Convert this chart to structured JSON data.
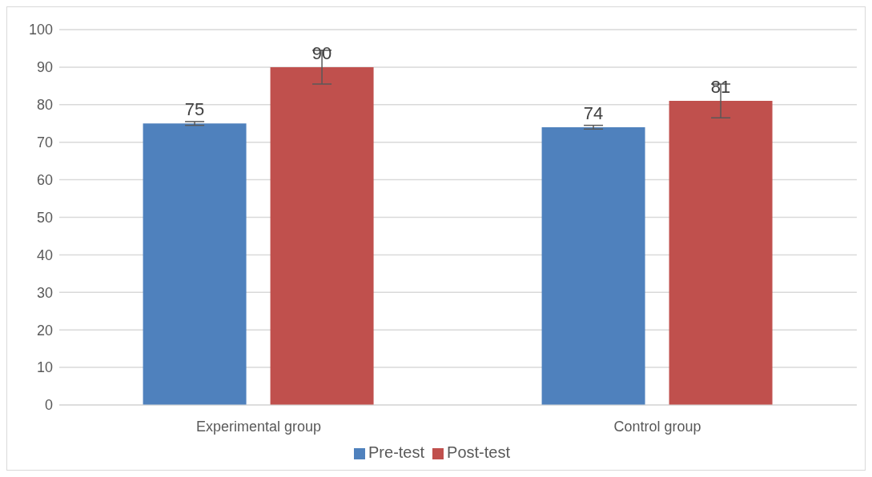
{
  "chart_data": {
    "type": "bar",
    "categories": [
      "Experimental group",
      "Control group"
    ],
    "series": [
      {
        "name": "Pre-test",
        "color": "#4f81bd",
        "values": [
          75,
          74
        ],
        "errors": [
          0.5,
          0.5
        ]
      },
      {
        "name": "Post-test",
        "color": "#c0504d",
        "values": [
          90,
          81
        ],
        "errors": [
          4.5,
          4.5
        ]
      }
    ],
    "ylim": [
      0,
      100
    ],
    "yticks": [
      0,
      10,
      20,
      30,
      40,
      50,
      60,
      70,
      80,
      90,
      100
    ],
    "grid": "y",
    "legend": "bottom",
    "data_labels": true
  }
}
